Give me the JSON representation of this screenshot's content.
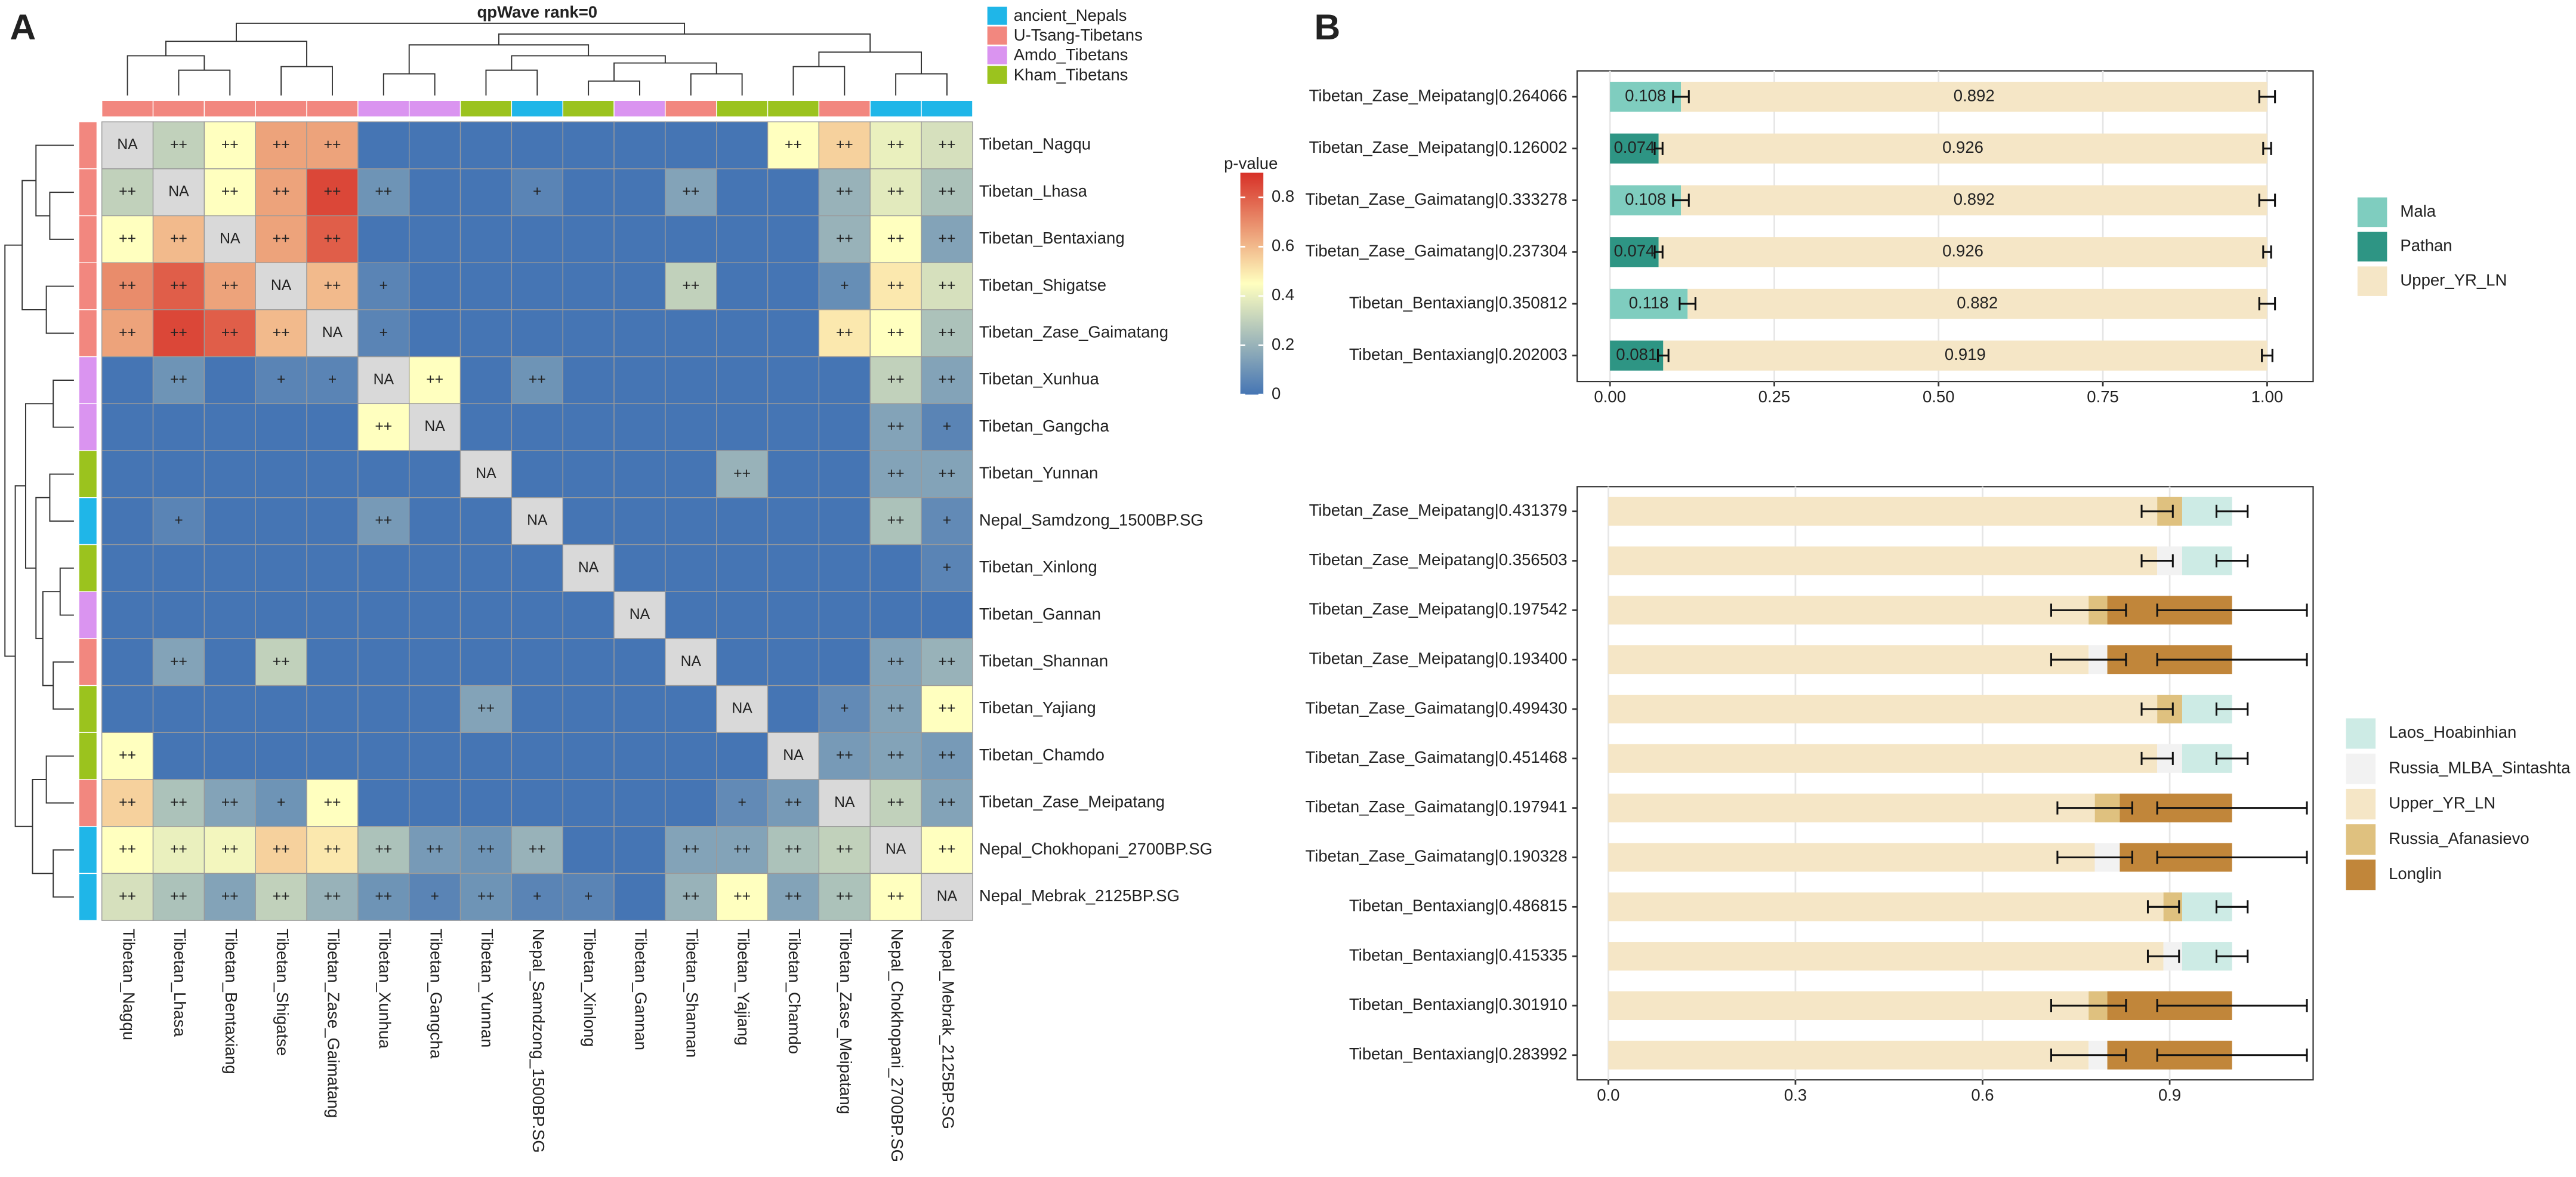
{
  "panel_labels": [
    "A",
    "B"
  ],
  "chart_data": [
    {
      "type": "heatmap",
      "title": "qpWave rank=0",
      "rows": [
        "Tibetan_Nagqu",
        "Tibetan_Lhasa",
        "Tibetan_Bentaxiang",
        "Tibetan_Shigatse",
        "Tibetan_Zase_Gaimatang",
        "Tibetan_Xunhua",
        "Tibetan_Gangcha",
        "Tibetan_Yunnan",
        "Nepal_Samdzong_1500BP.SG",
        "Tibetan_Xinlong",
        "Tibetan_Gannan",
        "Tibetan_Shannan",
        "Tibetan_Yajiang",
        "Tibetan_Chamdo",
        "Tibetan_Zase_Meipatang",
        "Nepal_Chokhopani_2700BP.SG",
        "Nepal_Mebrak_2125BP.SG"
      ],
      "columns": [
        "Tibetan_Nagqu",
        "Tibetan_Lhasa",
        "Tibetan_Bentaxiang",
        "Tibetan_Shigatse",
        "Tibetan_Zase_Gaimatang",
        "Tibetan_Xunhua",
        "Tibetan_Gangcha",
        "Tibetan_Yunnan",
        "Nepal_Samdzong_1500BP.SG",
        "Tibetan_Xinlong",
        "Tibetan_Gannan",
        "Tibetan_Shannan",
        "Tibetan_Yajiang",
        "Tibetan_Chamdo",
        "Tibetan_Zase_Meipatang",
        "Nepal_Chokhopani_2700BP.SG",
        "Nepal_Mebrak_2125BP.SG"
      ],
      "groups": [
        {
          "name": "ancient_Nepals",
          "color": "#1FB6E8"
        },
        {
          "name": "U-Tsang-Tibetans",
          "color": "#F2877F"
        },
        {
          "name": "Amdo_Tibetans",
          "color": "#DA94F0"
        },
        {
          "name": "Kham_Tibetans",
          "color": "#9BC31E"
        }
      ],
      "membership": [
        "U-Tsang-Tibetans",
        "U-Tsang-Tibetans",
        "U-Tsang-Tibetans",
        "U-Tsang-Tibetans",
        "U-Tsang-Tibetans",
        "Amdo_Tibetans",
        "Amdo_Tibetans",
        "Kham_Tibetans",
        "ancient_Nepals",
        "Kham_Tibetans",
        "Amdo_Tibetans",
        "U-Tsang-Tibetans",
        "Kham_Tibetans",
        "Kham_Tibetans",
        "U-Tsang-Tibetans",
        "ancient_Nepals",
        "ancient_Nepals"
      ],
      "values": [
        [
          null,
          0.3,
          0.45,
          0.65,
          0.65,
          0,
          0,
          0,
          0,
          0,
          0,
          0,
          0,
          0.45,
          0.55,
          0.4,
          0.35
        ],
        [
          0.3,
          null,
          0.45,
          0.65,
          0.85,
          0.1,
          0,
          0,
          0.05,
          0,
          0,
          0.15,
          0,
          0,
          0.2,
          0.38,
          0.25
        ],
        [
          0.45,
          0.6,
          null,
          0.65,
          0.8,
          0,
          0,
          0,
          0,
          0,
          0,
          0,
          0,
          0,
          0.2,
          0.45,
          0.15
        ],
        [
          0.7,
          0.8,
          0.65,
          null,
          0.6,
          0.05,
          0,
          0,
          0,
          0,
          0,
          0.3,
          0,
          0,
          0.08,
          0.5,
          0.35
        ],
        [
          0.65,
          0.85,
          0.8,
          0.6,
          null,
          0.05,
          0,
          0,
          0,
          0,
          0,
          0,
          0,
          0,
          0.5,
          0.45,
          0.25
        ],
        [
          0,
          0.1,
          0,
          0.05,
          0.05,
          null,
          0.45,
          0,
          0.1,
          0,
          0,
          0,
          0,
          0,
          0,
          0.3,
          0.15
        ],
        [
          0,
          0,
          0,
          0,
          0,
          0.45,
          null,
          0,
          0,
          0,
          0,
          0,
          0,
          0,
          0,
          0.15,
          0.05
        ],
        [
          0,
          0,
          0,
          0,
          0,
          0,
          0,
          null,
          0,
          0,
          0,
          0,
          0.2,
          0,
          0,
          0.15,
          0.15
        ],
        [
          0,
          0.05,
          0,
          0,
          0,
          0.12,
          0,
          0,
          null,
          0,
          0,
          0,
          0,
          0,
          0,
          0.25,
          0.07
        ],
        [
          0,
          0,
          0,
          0,
          0,
          0,
          0,
          0,
          0,
          null,
          0,
          0,
          0,
          0,
          0,
          0,
          0.05
        ],
        [
          0,
          0,
          0,
          0,
          0,
          0,
          0,
          0,
          0,
          0,
          null,
          0,
          0,
          0,
          0,
          0,
          0
        ],
        [
          0,
          0.15,
          0,
          0.3,
          0,
          0,
          0,
          0,
          0,
          0,
          0,
          null,
          0,
          0,
          0,
          0.15,
          0.2
        ],
        [
          0,
          0,
          0,
          0,
          0,
          0,
          0,
          0.15,
          0,
          0,
          0,
          0,
          null,
          0,
          0.07,
          0.15,
          0.45
        ],
        [
          0.45,
          0,
          0,
          0,
          0,
          0,
          0,
          0,
          0,
          0,
          0,
          0,
          0,
          null,
          0.12,
          0.15,
          0.12
        ],
        [
          0.55,
          0.25,
          0.15,
          0.1,
          0.45,
          0,
          0,
          0,
          0,
          0,
          0,
          0,
          0.07,
          0.12,
          null,
          0.3,
          0.15
        ],
        [
          0.45,
          0.4,
          0.42,
          0.55,
          0.5,
          0.25,
          0.12,
          0.1,
          0.2,
          0,
          0,
          0.15,
          0.15,
          0.25,
          0.3,
          null,
          0.45
        ],
        [
          0.35,
          0.25,
          0.15,
          0.3,
          0.2,
          0.1,
          0.05,
          0.1,
          0.05,
          0.05,
          0,
          0.2,
          0.45,
          0.15,
          0.25,
          0.45,
          null
        ]
      ],
      "labels": [
        [
          "NA",
          "++",
          "++",
          "++",
          "++",
          null,
          null,
          null,
          null,
          null,
          null,
          null,
          null,
          "++",
          "++",
          "++",
          "++"
        ],
        [
          "++",
          "NA",
          "++",
          "++",
          "++",
          "++",
          null,
          null,
          "+",
          null,
          null,
          "++",
          null,
          null,
          "++",
          "++",
          "++"
        ],
        [
          "++",
          "++",
          "NA",
          "++",
          "++",
          null,
          null,
          null,
          null,
          null,
          null,
          null,
          null,
          null,
          "++",
          "++",
          "++"
        ],
        [
          "++",
          "++",
          "++",
          "NA",
          "++",
          "+",
          null,
          null,
          null,
          null,
          null,
          "++",
          null,
          null,
          "+",
          "++",
          "++"
        ],
        [
          "++",
          "++",
          "++",
          "++",
          "NA",
          "+",
          null,
          null,
          null,
          null,
          null,
          null,
          null,
          null,
          "++",
          "++",
          "++"
        ],
        [
          null,
          "++",
          null,
          "+",
          "+",
          "NA",
          "++",
          null,
          "++",
          null,
          null,
          null,
          null,
          null,
          null,
          "++",
          "++"
        ],
        [
          null,
          null,
          null,
          null,
          null,
          "++",
          "NA",
          null,
          null,
          null,
          null,
          null,
          null,
          null,
          null,
          "++",
          "+"
        ],
        [
          null,
          null,
          null,
          null,
          null,
          null,
          null,
          "NA",
          null,
          null,
          null,
          null,
          "++",
          null,
          null,
          "++",
          "++"
        ],
        [
          null,
          "+",
          null,
          null,
          null,
          "++",
          null,
          null,
          "NA",
          null,
          null,
          null,
          null,
          null,
          null,
          "++",
          "+"
        ],
        [
          null,
          null,
          null,
          null,
          null,
          null,
          null,
          null,
          null,
          "NA",
          null,
          null,
          null,
          null,
          null,
          null,
          "+"
        ],
        [
          null,
          null,
          null,
          null,
          null,
          null,
          null,
          null,
          null,
          null,
          "NA",
          null,
          null,
          null,
          null,
          null,
          null
        ],
        [
          null,
          "++",
          null,
          "++",
          null,
          null,
          null,
          null,
          null,
          null,
          null,
          "NA",
          null,
          null,
          null,
          "++",
          "++"
        ],
        [
          null,
          null,
          null,
          null,
          null,
          null,
          null,
          "++",
          null,
          null,
          null,
          null,
          "NA",
          null,
          "+",
          "++",
          "++"
        ],
        [
          "++",
          null,
          null,
          null,
          null,
          null,
          null,
          null,
          null,
          null,
          null,
          null,
          null,
          "NA",
          "++",
          "++",
          "++"
        ],
        [
          "++",
          "++",
          "++",
          "+",
          "++",
          null,
          null,
          null,
          null,
          null,
          null,
          null,
          "+",
          "++",
          "NA",
          "++",
          "++"
        ],
        [
          "++",
          "++",
          "++",
          "++",
          "++",
          "++",
          "++",
          "++",
          "++",
          null,
          null,
          "++",
          "++",
          "++",
          "++",
          "NA",
          "++"
        ],
        [
          "++",
          "++",
          "++",
          "++",
          "++",
          "++",
          "+",
          "++",
          "+",
          "+",
          null,
          "++",
          "++",
          "++",
          "++",
          "++",
          "NA"
        ]
      ],
      "colorbar_title": "p-value",
      "clim": [
        0,
        0.9
      ],
      "cticks": [
        0,
        0.2,
        0.4,
        0.6,
        0.8
      ],
      "colorscale": [
        "#4575B4",
        "#FFFFBF",
        "#D73027"
      ],
      "na_color": "#D9D9D9"
    },
    {
      "type": "bar",
      "orientation": "horizontal",
      "show_values": true,
      "categories": [
        "Tibetan_Zase_Meipatang|0.264066",
        "Tibetan_Zase_Meipatang|0.126002",
        "Tibetan_Zase_Gaimatang|0.333278",
        "Tibetan_Zase_Gaimatang|0.237304",
        "Tibetan_Bentaxiang|0.350812",
        "Tibetan_Bentaxiang|0.202003"
      ],
      "series": [
        {
          "name": "Mala",
          "color": "#7FCDBF",
          "values": [
            0.108,
            null,
            0.108,
            null,
            0.118,
            null
          ],
          "errors": [
            0.012,
            null,
            0.012,
            null,
            0.012,
            null
          ]
        },
        {
          "name": "Pathan",
          "color": "#2E9584",
          "values": [
            null,
            0.074,
            null,
            0.074,
            null,
            0.081
          ],
          "errors": [
            null,
            0.006,
            null,
            0.006,
            null,
            0.008
          ]
        },
        {
          "name": "Upper_YR_LN",
          "color": "#F5E6C6",
          "values": [
            0.892,
            0.926,
            0.892,
            0.926,
            0.882,
            0.919
          ],
          "errors": [
            0.012,
            0.006,
            0.012,
            0.006,
            0.012,
            0.008
          ]
        }
      ],
      "xlim": [
        -0.05,
        1.07
      ],
      "xticks": [
        {
          "value": 0,
          "label": "0.00"
        },
        {
          "value": 0.25,
          "label": "0.25"
        },
        {
          "value": 0.5,
          "label": "0.50"
        },
        {
          "value": 0.75,
          "label": "0.75"
        },
        {
          "value": 1,
          "label": "1.00"
        }
      ],
      "grid": true
    },
    {
      "type": "bar",
      "orientation": "horizontal",
      "categories": [
        "Tibetan_Zase_Meipatang|0.431379",
        "Tibetan_Zase_Meipatang|0.356503",
        "Tibetan_Zase_Meipatang|0.197542",
        "Tibetan_Zase_Meipatang|0.193400",
        "Tibetan_Zase_Gaimatang|0.499430",
        "Tibetan_Zase_Gaimatang|0.451468",
        "Tibetan_Zase_Gaimatang|0.197941",
        "Tibetan_Zase_Gaimatang|0.190328",
        "Tibetan_Bentaxiang|0.486815",
        "Tibetan_Bentaxiang|0.415335",
        "Tibetan_Bentaxiang|0.301910",
        "Tibetan_Bentaxiang|0.283992"
      ],
      "series": [
        {
          "name": "Laos_Hoabinhian",
          "color": "#CDEBE5",
          "values": [
            0.08,
            0.08,
            null,
            null,
            0.08,
            0.08,
            null,
            null,
            0.08,
            0.08,
            null,
            null
          ],
          "errors": [
            0.025,
            0.025,
            null,
            null,
            0.025,
            0.025,
            null,
            null,
            0.025,
            0.025,
            null,
            null
          ]
        },
        {
          "name": "Russia_MLBA_Sintashta",
          "color": "#F2F2F2",
          "values": [
            null,
            0.04,
            null,
            0.03,
            null,
            0.04,
            null,
            0.04,
            null,
            0.03,
            null,
            0.03
          ],
          "errors": [
            null,
            null,
            null,
            null,
            null,
            null,
            null,
            null,
            null,
            null,
            null,
            null
          ]
        },
        {
          "name": "Upper_YR_LN",
          "color": "#F5E6C6",
          "values": [
            0.88,
            0.88,
            0.77,
            0.77,
            0.88,
            0.88,
            0.78,
            0.78,
            0.89,
            0.89,
            0.77,
            0.77
          ],
          "errors": [
            0.025,
            0.025,
            0.06,
            0.06,
            0.025,
            0.025,
            0.06,
            0.06,
            0.025,
            0.025,
            0.06,
            0.06
          ]
        },
        {
          "name": "Russia_Afanasievo",
          "color": "#DFC17F",
          "values": [
            0.04,
            null,
            0.03,
            null,
            0.04,
            null,
            0.04,
            null,
            0.03,
            null,
            0.03,
            null
          ],
          "errors": [
            null,
            null,
            null,
            null,
            null,
            null,
            null,
            null,
            null,
            null,
            null,
            null
          ]
        },
        {
          "name": "Longlin",
          "color": "#C1863A",
          "values": [
            null,
            null,
            0.2,
            0.2,
            null,
            null,
            0.18,
            0.18,
            null,
            null,
            0.2,
            0.2
          ],
          "errors": [
            null,
            null,
            0.12,
            0.12,
            null,
            null,
            0.12,
            0.12,
            null,
            null,
            0.12,
            0.12
          ]
        }
      ],
      "xlim": [
        -0.05,
        1.13
      ],
      "xticks": [
        {
          "value": 0,
          "label": "0.0"
        },
        0.3,
        0.6,
        0.9
      ],
      "grid": true
    }
  ]
}
